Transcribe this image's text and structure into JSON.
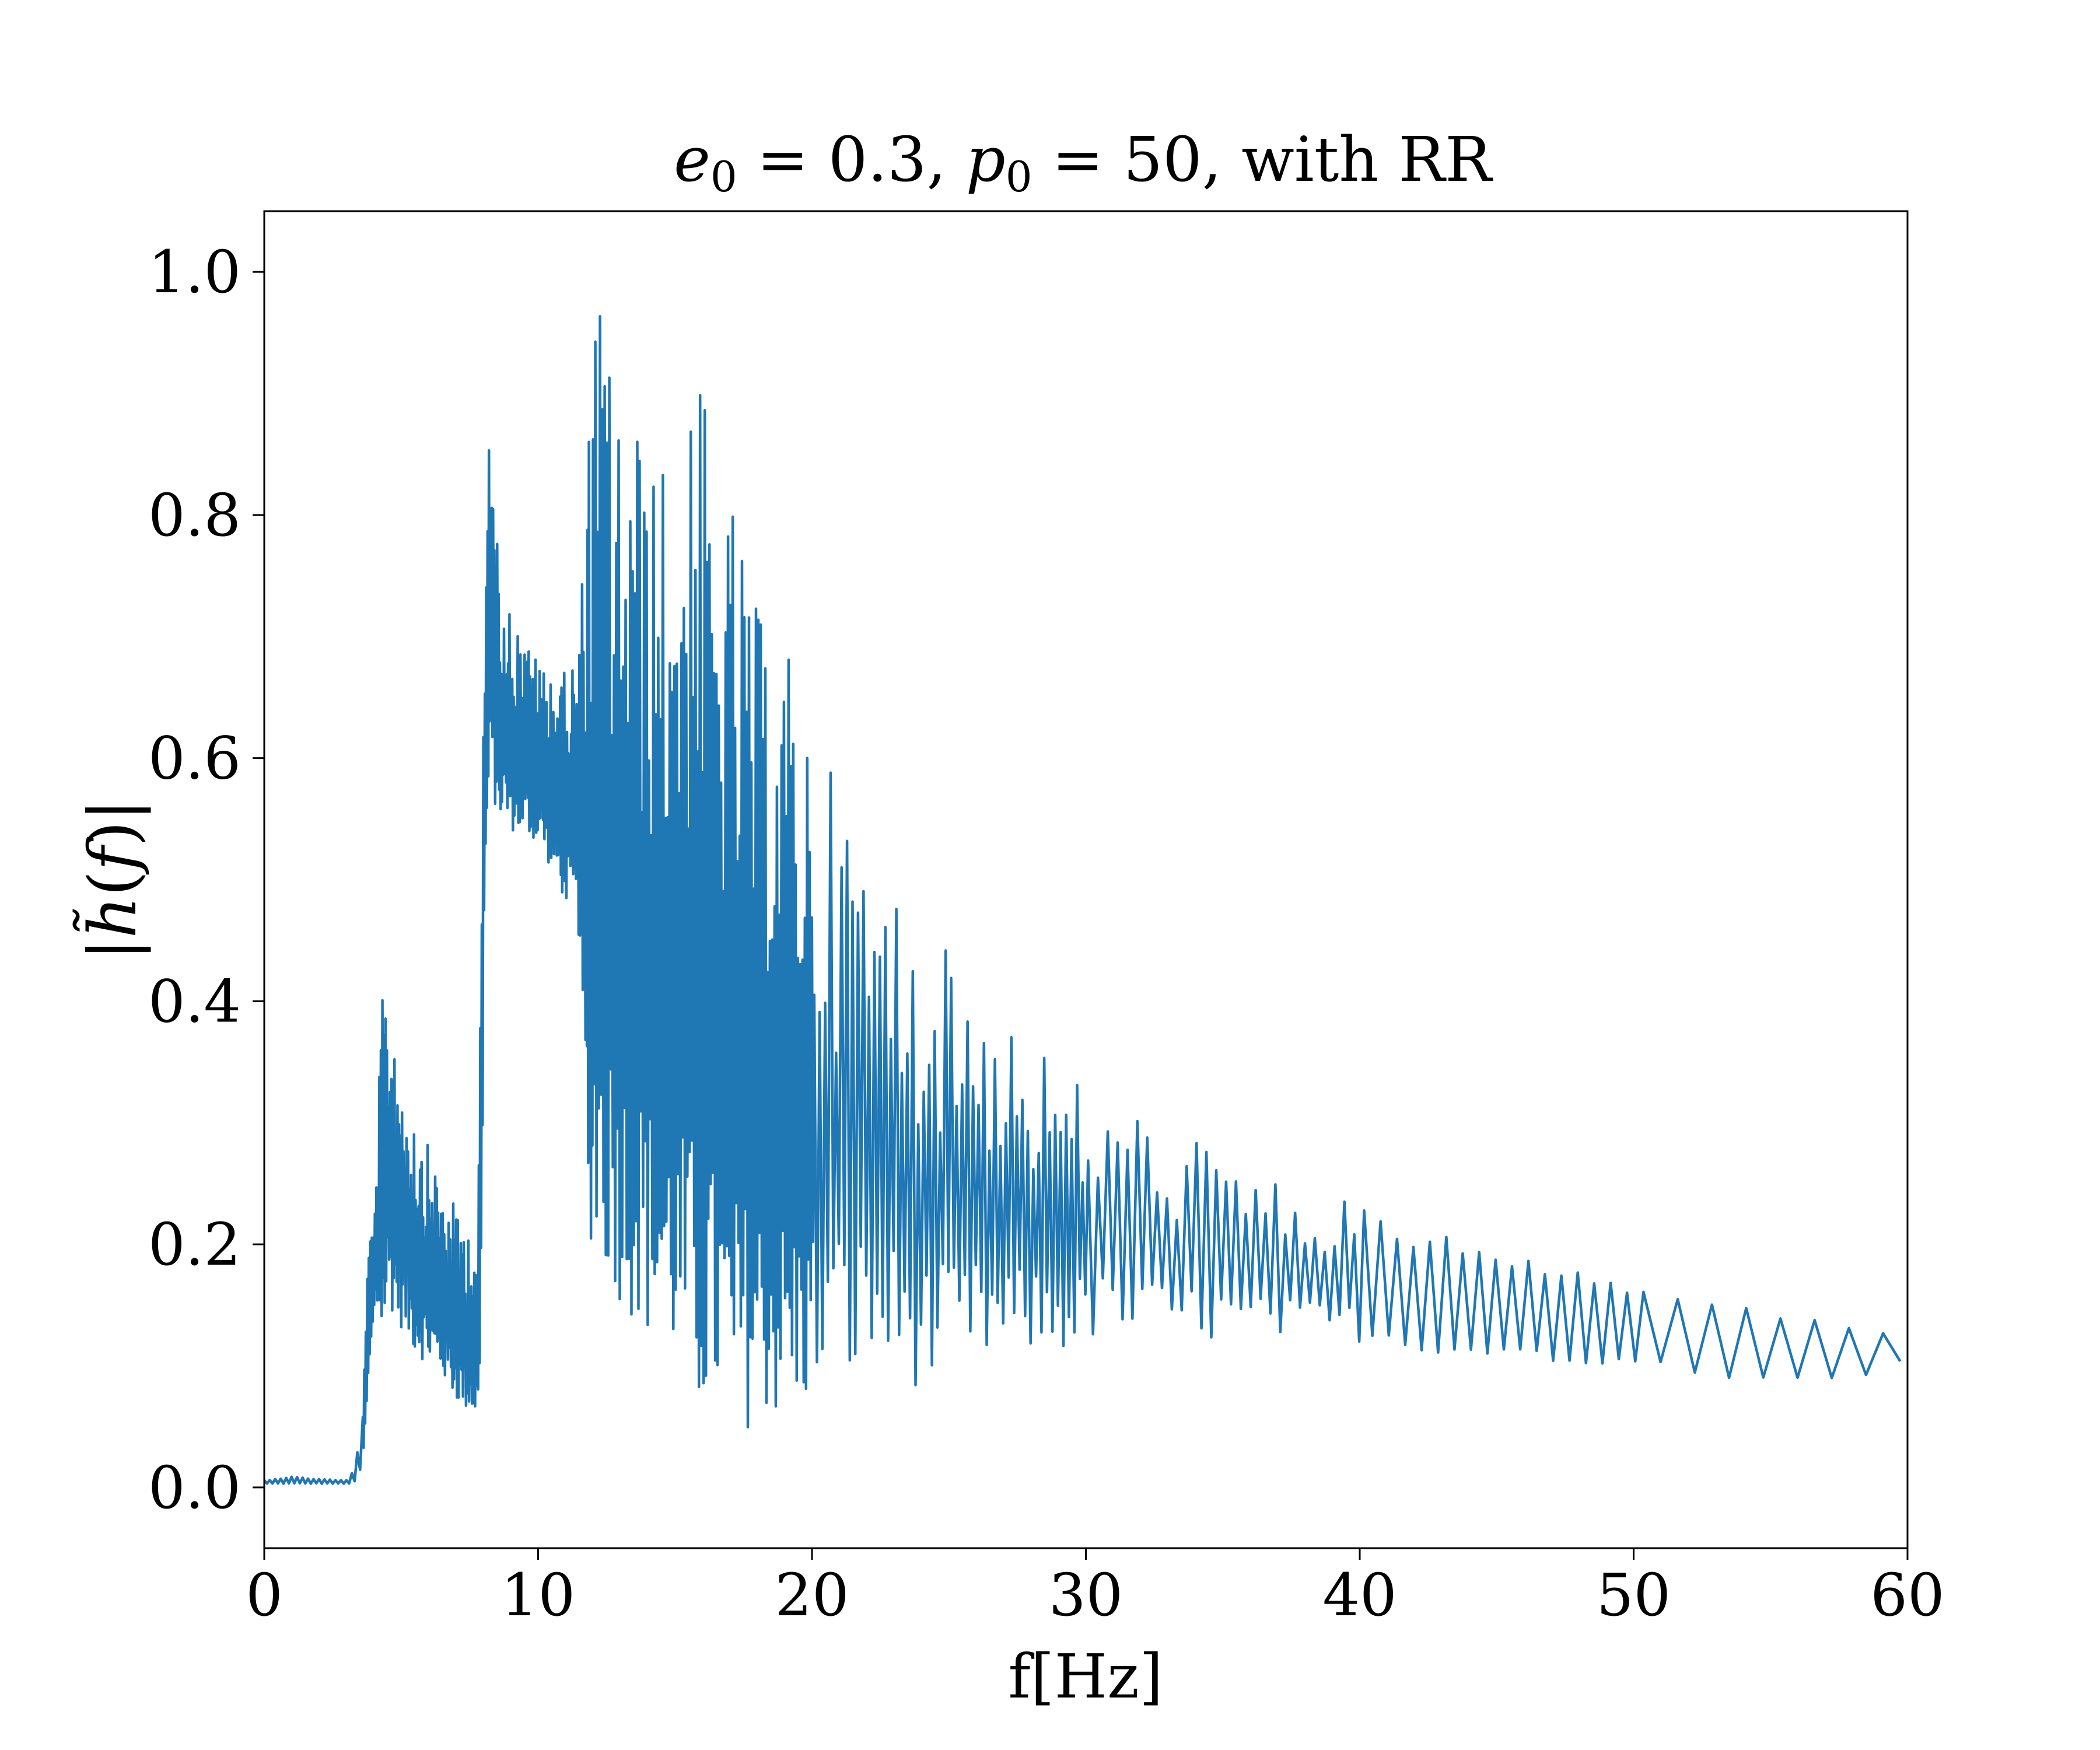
{
  "chart_data": {
    "type": "line",
    "title_parts": [
      {
        "text": "e",
        "italic": true
      },
      {
        "text": "0",
        "sub": true
      },
      {
        "text": " = 0.3, "
      },
      {
        "text": "p",
        "italic": true
      },
      {
        "text": "0",
        "sub": true
      },
      {
        "text": " = 50, with RR"
      }
    ],
    "xlabel": "f[Hz]",
    "ylabel_parts": [
      {
        "text": "|"
      },
      {
        "text": "h̃",
        "italic": true
      },
      {
        "text": "("
      },
      {
        "text": "f",
        "italic": true
      },
      {
        "text": ")|"
      }
    ],
    "xlim": [
      0,
      60
    ],
    "ylim": [
      -0.05,
      1.05
    ],
    "xticks": [
      0,
      10,
      20,
      30,
      40,
      50,
      60
    ],
    "xtick_labels": [
      "0",
      "10",
      "20",
      "30",
      "40",
      "50",
      "60"
    ],
    "yticks": [
      0.0,
      0.2,
      0.4,
      0.6,
      0.8,
      1.0
    ],
    "ytick_labels": [
      "0.0",
      "0.2",
      "0.4",
      "0.6",
      "0.8",
      "1.0"
    ],
    "grid": false,
    "series_color": "#1f77b4",
    "series": [
      {
        "style": "oscillating-envelope",
        "note_points": "Envelope of |h(f)| read from the plotted line: [f, lower, upper]",
        "envelope": [
          [
            0.0,
            0.003,
            0.006
          ],
          [
            1.0,
            0.003,
            0.009
          ],
          [
            2.0,
            0.003,
            0.007
          ],
          [
            3.0,
            0.003,
            0.006
          ],
          [
            3.3,
            0.006,
            0.015
          ],
          [
            3.6,
            0.03,
            0.06
          ],
          [
            3.8,
            0.1,
            0.2
          ],
          [
            4.0,
            0.15,
            0.21
          ],
          [
            4.3,
            0.12,
            0.4
          ],
          [
            4.5,
            0.15,
            0.42
          ],
          [
            5.0,
            0.13,
            0.35
          ],
          [
            5.5,
            0.11,
            0.31
          ],
          [
            6.0,
            0.1,
            0.28
          ],
          [
            6.5,
            0.09,
            0.25
          ],
          [
            7.0,
            0.07,
            0.23
          ],
          [
            7.5,
            0.06,
            0.22
          ],
          [
            7.8,
            0.05,
            0.21
          ],
          [
            7.9,
            0.16,
            0.4
          ],
          [
            8.0,
            0.45,
            0.65
          ],
          [
            8.2,
            0.58,
            0.9
          ],
          [
            8.5,
            0.55,
            0.78
          ],
          [
            9.0,
            0.54,
            0.72
          ],
          [
            10.0,
            0.53,
            0.68
          ],
          [
            11.0,
            0.48,
            0.67
          ],
          [
            11.5,
            0.45,
            0.7
          ],
          [
            11.8,
            0.2,
            0.85
          ],
          [
            12.0,
            0.2,
            0.95
          ],
          [
            12.2,
            0.18,
            1.0
          ],
          [
            13.0,
            0.15,
            0.9
          ],
          [
            14.0,
            0.12,
            0.86
          ],
          [
            15.0,
            0.1,
            0.83
          ],
          [
            15.8,
            0.05,
            0.95
          ],
          [
            16.5,
            0.06,
            0.8
          ],
          [
            17.0,
            0.03,
            0.82
          ],
          [
            18.0,
            0.06,
            0.72
          ],
          [
            19.0,
            0.05,
            0.7
          ],
          [
            20.0,
            0.07,
            0.62
          ],
          [
            21.0,
            0.08,
            0.58
          ],
          [
            22.0,
            0.09,
            0.53
          ],
          [
            23.0,
            0.09,
            0.5
          ],
          [
            24.0,
            0.08,
            0.47
          ],
          [
            25.0,
            0.09,
            0.44
          ],
          [
            26.0,
            0.1,
            0.42
          ],
          [
            27.0,
            0.1,
            0.4
          ],
          [
            28.0,
            0.11,
            0.37
          ],
          [
            29.0,
            0.11,
            0.35
          ],
          [
            30.0,
            0.12,
            0.33
          ],
          [
            31.0,
            0.12,
            0.32
          ],
          [
            32.0,
            0.12,
            0.31
          ],
          [
            33.0,
            0.12,
            0.3
          ],
          [
            34.0,
            0.12,
            0.29
          ],
          [
            35.0,
            0.12,
            0.28
          ],
          [
            36.0,
            0.12,
            0.26
          ],
          [
            37.0,
            0.12,
            0.25
          ],
          [
            38.0,
            0.12,
            0.25
          ],
          [
            39.0,
            0.12,
            0.24
          ],
          [
            40.0,
            0.12,
            0.23
          ],
          [
            41.0,
            0.12,
            0.22
          ],
          [
            42.0,
            0.11,
            0.21
          ],
          [
            43.0,
            0.11,
            0.21
          ],
          [
            44.0,
            0.11,
            0.2
          ],
          [
            45.0,
            0.11,
            0.19
          ],
          [
            46.0,
            0.11,
            0.19
          ],
          [
            47.0,
            0.1,
            0.18
          ],
          [
            48.0,
            0.1,
            0.18
          ],
          [
            49.0,
            0.1,
            0.17
          ],
          [
            50.0,
            0.1,
            0.17
          ],
          [
            51.0,
            0.1,
            0.16
          ],
          [
            52.0,
            0.09,
            0.16
          ],
          [
            53.0,
            0.09,
            0.16
          ],
          [
            54.0,
            0.09,
            0.15
          ],
          [
            55.0,
            0.09,
            0.15
          ],
          [
            56.0,
            0.09,
            0.14
          ],
          [
            57.0,
            0.09,
            0.14
          ],
          [
            58.0,
            0.09,
            0.13
          ],
          [
            59.0,
            0.1,
            0.13
          ],
          [
            60.0,
            0.12,
            0.13
          ]
        ]
      }
    ]
  }
}
